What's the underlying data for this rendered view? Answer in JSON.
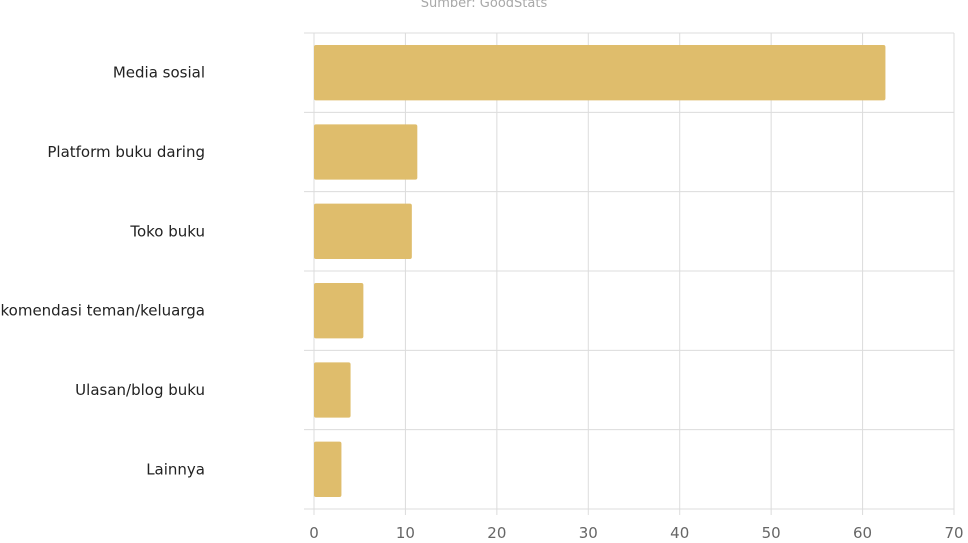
{
  "source_note": "Sumber: GoodStats",
  "chart_data": {
    "type": "bar",
    "orientation": "horizontal",
    "categories": [
      "Media sosial",
      "Platform buku daring",
      "Toko buku",
      "Rekomendasi teman/keluarga",
      "Ulasan/blog buku",
      "Lainnya"
    ],
    "values": [
      62.5,
      11.3,
      10.7,
      5.4,
      4.0,
      3.0
    ],
    "xlim": [
      0,
      70
    ],
    "xticks": [
      0,
      10,
      20,
      30,
      40,
      50,
      60,
      70
    ],
    "grid": true,
    "colors": {
      "bar": "#dfbd6c",
      "grid": "#dcdcdc",
      "tick_label": "#666666",
      "category_label": "#222222"
    }
  }
}
